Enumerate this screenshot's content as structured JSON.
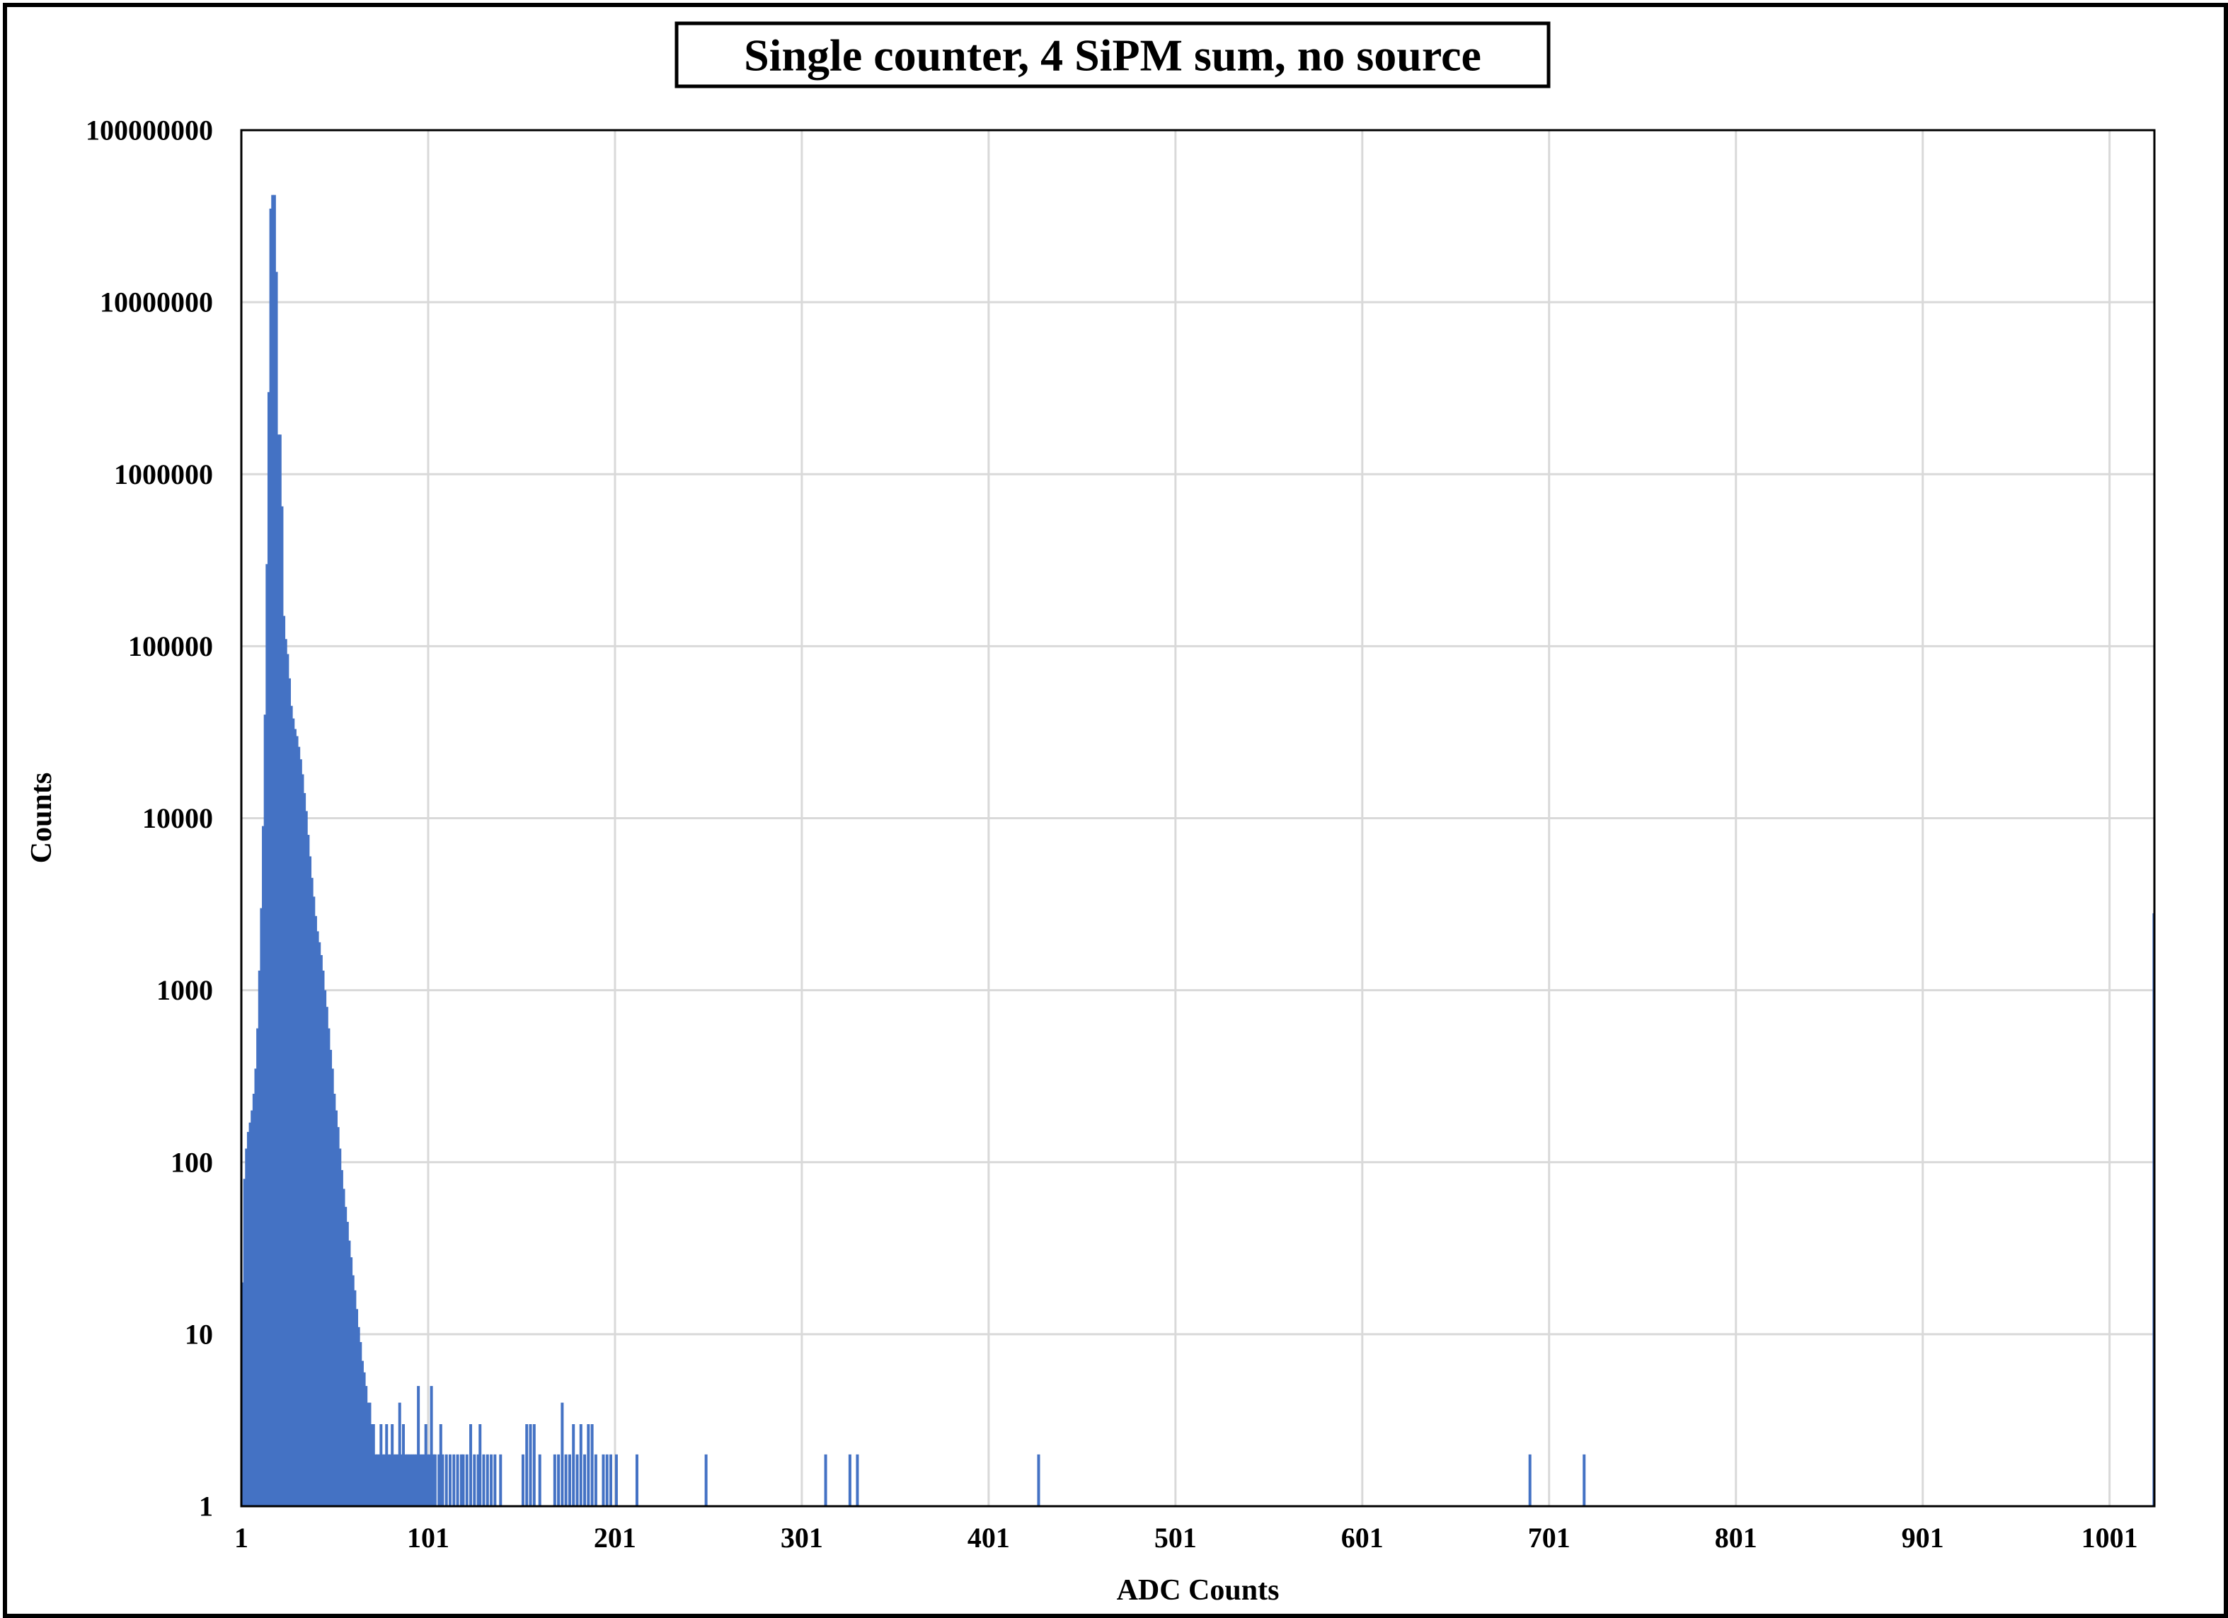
{
  "chart_data": {
    "type": "bar",
    "title": "Single counter, 4 SiPM sum, no source",
    "xlabel": "ADC Counts",
    "ylabel": "Counts",
    "y_scale": "log",
    "ylim": [
      1,
      100000000
    ],
    "xlim": [
      1,
      1024
    ],
    "grid": true,
    "legend": "none",
    "x_tick_labels": [
      "1",
      "101",
      "201",
      "301",
      "401",
      "501",
      "601",
      "701",
      "801",
      "901",
      "1001"
    ],
    "y_tick_labels": [
      "1",
      "10",
      "100",
      "1000",
      "10000",
      "100000",
      "1000000",
      "10000000",
      "100000000"
    ],
    "bar_color": "#4472C4",
    "gridline_color": "#D9D9D9",
    "series": [
      {
        "x": [
          1,
          2,
          3,
          4,
          5,
          6,
          7,
          8,
          9,
          10,
          11,
          12,
          13,
          14,
          15,
          16,
          17,
          18,
          19,
          20,
          21,
          22,
          23,
          24,
          25,
          26,
          27,
          28,
          29,
          30,
          31,
          32,
          33,
          34,
          35,
          36,
          37,
          38,
          39,
          40,
          41,
          42,
          43,
          44,
          45,
          46,
          47,
          48,
          49,
          50,
          51,
          52,
          53,
          54,
          55,
          56,
          57,
          58,
          59,
          60,
          61,
          62,
          63,
          64,
          65,
          66,
          67,
          68,
          69,
          70,
          71,
          72,
          73,
          74,
          75,
          76,
          77,
          78,
          79,
          80,
          81,
          82,
          83,
          84,
          85,
          86,
          87,
          88,
          89,
          90,
          91,
          92,
          93,
          94,
          95,
          96,
          97,
          98,
          99,
          100,
          101,
          102,
          103,
          104,
          106,
          107,
          108,
          110,
          112,
          114,
          116,
          118,
          119,
          121,
          123,
          125,
          127,
          128,
          130,
          132,
          134,
          136,
          139,
          151,
          153,
          155,
          157,
          160,
          168,
          170,
          172,
          174,
          176,
          178,
          180,
          182,
          184,
          186,
          188,
          190,
          194,
          196,
          198,
          201,
          212,
          249,
          313,
          326,
          330,
          427,
          690,
          719,
          1024
        ],
        "values": [
          20,
          80,
          120,
          150,
          170,
          200,
          250,
          350,
          600,
          1300,
          3000,
          9000,
          40000,
          300000,
          3000000,
          35000000,
          42000000,
          42000000,
          15000000,
          1700000,
          1700000,
          650000,
          150000,
          110000,
          90000,
          65000,
          45000,
          38000,
          33000,
          30000,
          26000,
          22000,
          18000,
          14000,
          11000,
          8000,
          6000,
          4500,
          3500,
          2700,
          2200,
          1900,
          1600,
          1300,
          1000,
          800,
          600,
          450,
          350,
          250,
          200,
          160,
          120,
          90,
          70,
          55,
          45,
          35,
          28,
          22,
          18,
          14,
          11,
          9,
          7,
          6,
          5,
          4,
          4,
          3,
          3,
          2,
          2,
          2,
          3,
          2,
          2,
          3,
          2,
          2,
          3,
          2,
          2,
          2,
          4,
          2,
          3,
          2,
          2,
          2,
          2,
          2,
          2,
          2,
          5,
          2,
          2,
          2,
          3,
          2,
          2,
          5,
          2,
          2,
          2,
          3,
          2,
          2,
          2,
          2,
          2,
          2,
          2,
          2,
          3,
          2,
          2,
          3,
          2,
          2,
          2,
          2,
          2,
          2,
          3,
          3,
          3,
          2,
          2,
          2,
          4,
          2,
          2,
          3,
          2,
          3,
          2,
          3,
          3,
          2,
          2,
          2,
          2,
          2,
          2,
          2,
          2,
          2,
          2,
          2,
          2,
          2,
          2800
        ]
      }
    ]
  }
}
